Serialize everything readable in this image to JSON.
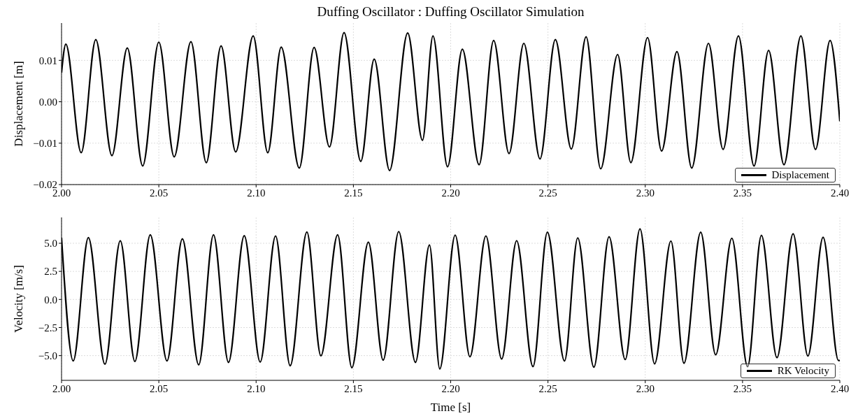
{
  "chart_data": [
    {
      "type": "line",
      "title": "Duffing Oscillator : Duffing Oscillator Simulation",
      "ylabel": "Displacement [m]",
      "xlim": [
        2.0,
        2.4
      ],
      "xticks": [
        {
          "value": 2.0,
          "label": "2.00"
        },
        {
          "value": 2.05,
          "label": "2.05"
        },
        {
          "value": 2.1,
          "label": "2.10"
        },
        {
          "value": 2.15,
          "label": "2.15"
        },
        {
          "value": 2.2,
          "label": "2.20"
        },
        {
          "value": 2.25,
          "label": "2.25"
        },
        {
          "value": 2.3,
          "label": "2.30"
        },
        {
          "value": 2.35,
          "label": "2.35"
        },
        {
          "value": 2.4,
          "label": "2.40"
        }
      ],
      "ylim": [
        -0.02,
        0.019
      ],
      "yticks": [
        {
          "value": -0.02,
          "label": "−0.02"
        },
        {
          "value": -0.01,
          "label": "−0.01"
        },
        {
          "value": 0,
          "label": "0.00"
        },
        {
          "value": 0.01,
          "label": "0.01"
        }
      ],
      "grid": true,
      "legend": "bottom right",
      "series": [
        {
          "name": "Displacement",
          "color": "#000000",
          "x": [
            2.0,
            2.0022,
            2.0101,
            2.0176,
            2.0259,
            2.0338,
            2.0417,
            2.05,
            2.0579,
            2.0665,
            2.0744,
            2.082,
            2.0895,
            2.0985,
            2.106,
            2.1129,
            2.1222,
            2.1298,
            2.1377,
            2.1452,
            2.1538,
            2.1607,
            2.1686,
            2.1779,
            2.1855,
            2.1909,
            2.1984,
            2.206,
            2.2146,
            2.2221,
            2.23,
            2.2376,
            2.2459,
            2.2538,
            2.262,
            2.2696,
            2.2771,
            2.2858,
            2.2926,
            2.3012,
            2.3084,
            2.3163,
            2.3239,
            2.3325,
            2.34,
            2.3479,
            2.3559,
            2.3634,
            2.3713,
            2.38,
            2.3875,
            2.395,
            2.4
          ],
          "values": [
            0.007,
            0.0139,
            -0.0123,
            0.015,
            -0.013,
            0.013,
            -0.0155,
            0.0144,
            -0.0133,
            0.0145,
            -0.0147,
            0.0135,
            -0.0121,
            0.0159,
            -0.0123,
            0.0132,
            -0.016,
            0.0131,
            -0.0109,
            0.0167,
            -0.0144,
            0.0103,
            -0.0166,
            0.0166,
            -0.0093,
            0.0159,
            -0.0157,
            0.0127,
            -0.0152,
            0.0148,
            -0.0125,
            0.0141,
            -0.0138,
            0.015,
            -0.0114,
            0.0157,
            -0.0162,
            0.0114,
            -0.0147,
            0.0155,
            -0.0119,
            0.0121,
            -0.016,
            0.0141,
            -0.0115,
            0.0159,
            -0.0155,
            0.0124,
            -0.0152,
            0.0159,
            -0.0115,
            0.0148,
            -0.0047
          ]
        }
      ]
    },
    {
      "type": "line",
      "xlabel": "Time [s]",
      "ylabel": "Velocity [m/s]",
      "xlim": [
        2.0,
        2.4
      ],
      "xticks": [
        {
          "value": 2.0,
          "label": "2.00"
        },
        {
          "value": 2.05,
          "label": "2.05"
        },
        {
          "value": 2.1,
          "label": "2.10"
        },
        {
          "value": 2.15,
          "label": "2.15"
        },
        {
          "value": 2.2,
          "label": "2.20"
        },
        {
          "value": 2.25,
          "label": "2.25"
        },
        {
          "value": 2.3,
          "label": "2.30"
        },
        {
          "value": 2.35,
          "label": "2.35"
        },
        {
          "value": 2.4,
          "label": "2.40"
        }
      ],
      "ylim": [
        -7.2,
        7.3
      ],
      "yticks": [
        {
          "value": -5,
          "label": "−5.0"
        },
        {
          "value": -2.5,
          "label": "−2.5"
        },
        {
          "value": 0,
          "label": "0.0"
        },
        {
          "value": 2.5,
          "label": "2.5"
        },
        {
          "value": 5,
          "label": "5.0"
        }
      ],
      "grid": true,
      "legend": "bottom right",
      "series": [
        {
          "name": "RK Velocity",
          "color": "#000000",
          "x": [
            2.0,
            2.006,
            2.0138,
            2.0223,
            2.0302,
            2.0377,
            2.0456,
            2.0542,
            2.0621,
            2.0705,
            2.0781,
            2.0858,
            2.0939,
            2.1021,
            2.11,
            2.1175,
            2.1261,
            2.1333,
            2.1419,
            2.1492,
            2.1577,
            2.1653,
            2.1733,
            2.1819,
            2.1891,
            2.1944,
            2.2023,
            2.2099,
            2.2181,
            2.2262,
            2.2339,
            2.2423,
            2.2497,
            2.2585,
            2.2653,
            2.2736,
            2.2814,
            2.2897,
            2.2973,
            2.3048,
            2.3132,
            2.3199,
            2.3285,
            2.3362,
            2.3445,
            2.3526,
            2.3597,
            2.3677,
            2.376,
            2.3836,
            2.3914,
            2.3993,
            2.4
          ],
          "values": [
            5.5,
            -5.47,
            5.5,
            -5.77,
            5.22,
            -5.52,
            5.75,
            -5.47,
            5.4,
            -5.82,
            5.75,
            -5.6,
            5.67,
            -5.57,
            5.65,
            -5.9,
            6.0,
            -5.02,
            5.75,
            -6.07,
            5.1,
            -5.4,
            6.04,
            -5.6,
            4.85,
            -6.18,
            5.73,
            -5.1,
            5.65,
            -5.3,
            5.23,
            -5.98,
            5.98,
            -5.48,
            5.48,
            -6.03,
            5.58,
            -5.35,
            6.28,
            -5.73,
            5.2,
            -5.68,
            5.98,
            -4.93,
            5.45,
            -5.98,
            5.7,
            -5.18,
            5.85,
            -5.03,
            5.53,
            -5.43,
            -5.43
          ]
        }
      ]
    }
  ]
}
